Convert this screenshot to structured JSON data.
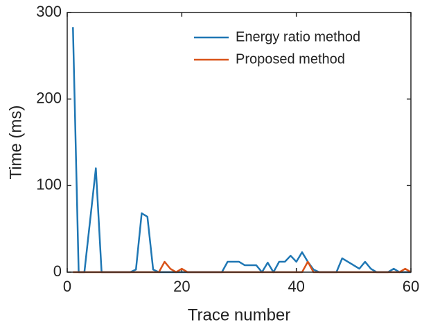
{
  "chart_data": {
    "type": "line",
    "x_label": "Trace number",
    "y_label": "Time (ms)",
    "x": [
      1,
      2,
      3,
      4,
      5,
      6,
      7,
      8,
      9,
      10,
      11,
      12,
      13,
      14,
      15,
      16,
      17,
      18,
      19,
      20,
      21,
      22,
      23,
      24,
      25,
      26,
      27,
      28,
      29,
      30,
      31,
      32,
      33,
      34,
      35,
      36,
      37,
      38,
      39,
      40,
      41,
      42,
      43,
      44,
      45,
      46,
      47,
      48,
      49,
      50,
      51,
      52,
      53,
      54,
      55,
      56,
      57,
      58,
      59,
      60
    ],
    "series": [
      {
        "name": "Energy ratio method",
        "color": "#1f77b4",
        "values": [
          283,
          0,
          0,
          60,
          120,
          0,
          0,
          0,
          0,
          0,
          0,
          3,
          68,
          64,
          3,
          0,
          0,
          0,
          0,
          0,
          0,
          0,
          0,
          0,
          0,
          0,
          0,
          12,
          12,
          12,
          8,
          8,
          8,
          0,
          11,
          0,
          12,
          12,
          19,
          12,
          23,
          12,
          3,
          0,
          0,
          0,
          0,
          16,
          12,
          8,
          4,
          12,
          4,
          0,
          0,
          0,
          4,
          0,
          0,
          0
        ]
      },
      {
        "name": "Proposed method",
        "color": "#d95319",
        "values": [
          0,
          0,
          0,
          0,
          0,
          0,
          0,
          0,
          0,
          0,
          0,
          0,
          0,
          0,
          0,
          0,
          12,
          4,
          0,
          4,
          0,
          0,
          0,
          0,
          0,
          0,
          0,
          0,
          0,
          0,
          0,
          0,
          0,
          0,
          0,
          0,
          0,
          0,
          0,
          0,
          0,
          12,
          0,
          0,
          0,
          0,
          0,
          0,
          0,
          0,
          0,
          0,
          0,
          0,
          0,
          0,
          0,
          0,
          4,
          0
        ]
      }
    ],
    "xlim": [
      0,
      60
    ],
    "xticks": [
      0,
      20,
      40,
      60
    ],
    "ylim": [
      0,
      300
    ],
    "yticks": [
      0,
      100,
      200,
      300
    ],
    "legend": "upper right"
  }
}
